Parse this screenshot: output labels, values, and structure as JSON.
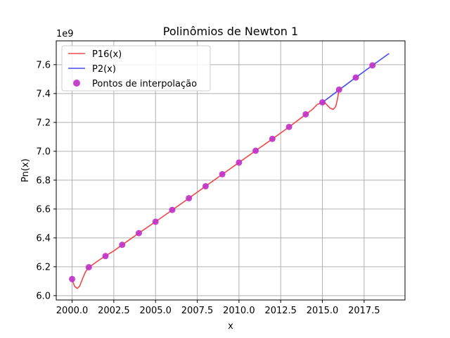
{
  "chart_data": {
    "type": "line",
    "title": "Polinômios de Newton 1",
    "xlabel": "x",
    "ylabel": "Pn(x)",
    "y_offset_label": "1e9",
    "xlim": [
      1999.05,
      2019.95
    ],
    "ylim": [
      5.97,
      7.765
    ],
    "x_ticks": [
      2000.0,
      2002.5,
      2005.0,
      2007.5,
      2010.0,
      2012.5,
      2015.0,
      2017.5
    ],
    "x_tick_labels": [
      "2000.0",
      "2002.5",
      "2005.0",
      "2007.5",
      "2010.0",
      "2012.5",
      "2015.0",
      "2017.5"
    ],
    "y_ticks": [
      6.0,
      6.2,
      6.4,
      6.6,
      6.8,
      7.0,
      7.2,
      7.4,
      7.6
    ],
    "y_tick_labels": [
      "6.0",
      "6.2",
      "6.4",
      "6.6",
      "6.8",
      "7.0",
      "7.2",
      "7.4",
      "7.6"
    ],
    "grid": true,
    "legend_position": "top-left",
    "series": [
      {
        "name": "P16(x)",
        "kind": "line",
        "color": "#f04848",
        "x": [
          2000.0,
          2000.15,
          2000.3,
          2000.45,
          2000.6,
          2000.8,
          2001.0,
          2001.3,
          2001.6,
          2002.0,
          2002.5,
          2003.0,
          2004.0,
          2005.0,
          2006.0,
          2007.0,
          2008.0,
          2009.0,
          2010.0,
          2011.0,
          2012.0,
          2013.0,
          2014.0,
          2014.4,
          2014.7,
          2015.0,
          2015.2,
          2015.45,
          2015.65,
          2015.8,
          2015.9,
          2016.0
        ],
        "y": [
          6.11,
          6.065,
          6.05,
          6.065,
          6.11,
          6.165,
          6.195,
          6.22,
          6.245,
          6.275,
          6.31,
          6.352,
          6.433,
          6.512,
          6.593,
          6.675,
          6.758,
          6.84,
          6.922,
          7.004,
          7.085,
          7.168,
          7.255,
          7.29,
          7.325,
          7.338,
          7.33,
          7.3,
          7.29,
          7.31,
          7.36,
          7.43
        ]
      },
      {
        "name": "P2(x)",
        "kind": "line",
        "color": "#4a4af0",
        "x": [
          2015.0,
          2016.0,
          2017.0,
          2018.0,
          2019.0
        ],
        "y": [
          7.338,
          7.425,
          7.511,
          7.595,
          7.678
        ]
      },
      {
        "name": "Pontos de interpolação",
        "kind": "scatter",
        "color": "#c030c8",
        "x": [
          2000,
          2001,
          2002,
          2003,
          2004,
          2005,
          2006,
          2007,
          2008,
          2009,
          2010,
          2011,
          2012,
          2013,
          2014,
          2015,
          2016,
          2017,
          2018
        ],
        "y": [
          6.115,
          6.197,
          6.274,
          6.352,
          6.433,
          6.512,
          6.594,
          6.675,
          6.758,
          6.841,
          6.922,
          7.004,
          7.086,
          7.169,
          7.256,
          7.339,
          7.427,
          7.511,
          7.595
        ]
      }
    ]
  }
}
